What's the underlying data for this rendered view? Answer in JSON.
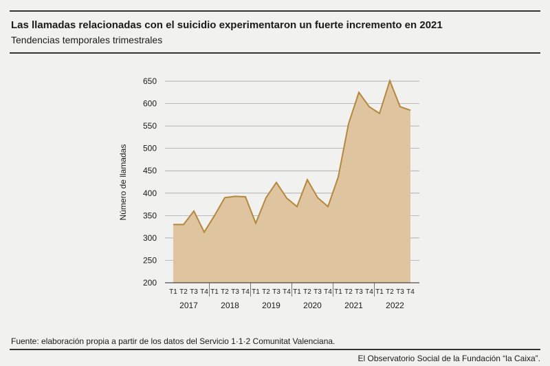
{
  "title": "Las llamadas relacionadas con el suicidio experimentaron un fuerte incremento en 2021",
  "subtitle": "Tendencias temporales trimestrales",
  "source": "Fuente: elaboración propia a partir de los datos del Servicio 1·1·2 Comunitat Valenciana.",
  "footer": "El Observatorio Social de la Fundación “la Caixa”.",
  "colors": {
    "area": "#dfc59f",
    "line": "#b5873a",
    "grid": "#9a9a9a",
    "rule": "#333333",
    "background": "#f1f1ef"
  },
  "chart_data": {
    "type": "area",
    "title": "",
    "xlabel": "",
    "ylabel": "Número de llamadas",
    "ylim": [
      200,
      650
    ],
    "yticks": [
      200,
      250,
      300,
      350,
      400,
      450,
      500,
      550,
      600,
      650
    ],
    "grid": true,
    "quarter_labels": [
      "T1",
      "T2",
      "T3",
      "T4"
    ],
    "years": [
      "2017",
      "2018",
      "2019",
      "2020",
      "2021",
      "2022"
    ],
    "series": [
      {
        "values": [
          330,
          330,
          360,
          313,
          350,
          390,
          393,
          392,
          333,
          390,
          424,
          389,
          370,
          430,
          390,
          370,
          436,
          555,
          625,
          593,
          578,
          651,
          593,
          585
        ]
      }
    ]
  }
}
